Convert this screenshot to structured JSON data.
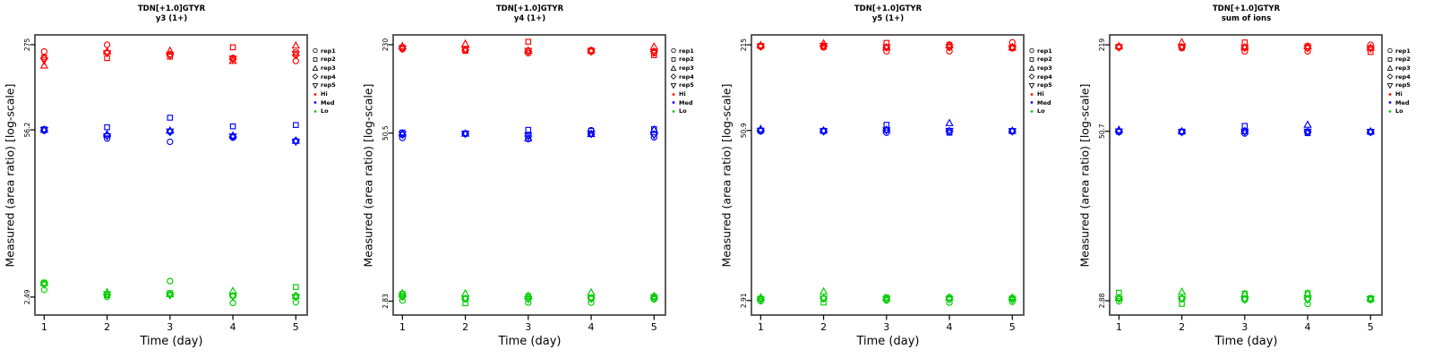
{
  "colors": {
    "hi": "#FF0000",
    "med": "#0000FF",
    "lo": "#00CD00",
    "frame": "#4D4D4D",
    "axis": "#000000"
  },
  "legend": {
    "reps": [
      {
        "label": "rep1",
        "marker": "circle"
      },
      {
        "label": "rep2",
        "marker": "square"
      },
      {
        "label": "rep3",
        "marker": "triangle-up"
      },
      {
        "label": "rep4",
        "marker": "diamond"
      },
      {
        "label": "rep5",
        "marker": "triangle-down"
      }
    ],
    "levels": [
      {
        "label": "Hi",
        "color": "#FF0000"
      },
      {
        "label": "Med",
        "color": "#0000FF"
      },
      {
        "label": "Lo",
        "color": "#00CD00"
      }
    ]
  },
  "chart_data": [
    {
      "type": "scatter",
      "title": "TDN[+1.0]GTYR",
      "subtitle": "y3 (1+)",
      "xlabel": "Time (day)",
      "ylabel": "Measured (area ratio) [log-scale]",
      "x": [
        1,
        2,
        3,
        4,
        5
      ],
      "xticks": [
        "1",
        "2",
        "3",
        "4",
        "5"
      ],
      "xlim": [
        0.853,
        5.181
      ],
      "yscale": "log",
      "ylim": [
        1.78,
        330
      ],
      "ytick_values": [
        2.49,
        56.2,
        275
      ],
      "ytick_labels": [
        "2.49",
        "56.2",
        "275"
      ],
      "grid": false,
      "legend_position": "right",
      "levels": [
        {
          "name": "Hi",
          "color": "#FF0000",
          "reps": [
            {
              "name": "rep1",
              "marker": "circle",
              "values": [
                242,
                275,
                230,
                215,
                203
              ]
            },
            {
              "name": "rep2",
              "marker": "square",
              "values": [
                217,
                214,
                220,
                262,
                238
              ]
            },
            {
              "name": "rep3",
              "marker": "triangle-up",
              "values": [
                186,
                242,
                245,
                203,
                270
              ]
            },
            {
              "name": "rep4",
              "marker": "diamond",
              "values": [
                212,
                238,
                228,
                210,
                226
              ]
            },
            {
              "name": "rep5",
              "marker": "triangle-down",
              "values": [
                205,
                235,
                225,
                212,
                231
              ]
            }
          ]
        },
        {
          "name": "Med",
          "color": "#0000FF",
          "reps": [
            {
              "name": "rep1",
              "marker": "circle",
              "values": [
                55.5,
                47.8,
                45.0,
                48.6,
                45.5
              ]
            },
            {
              "name": "rep2",
              "marker": "square",
              "values": [
                56.8,
                59.0,
                70.5,
                60.0,
                61.5
              ]
            },
            {
              "name": "rep3",
              "marker": "triangle-up",
              "values": [
                56.2,
                51.7,
                55.3,
                50.4,
                45.8
              ]
            },
            {
              "name": "rep4",
              "marker": "diamond",
              "values": [
                55.8,
                50.5,
                54.0,
                49.5,
                46.0
              ]
            },
            {
              "name": "rep5",
              "marker": "triangle-down",
              "values": [
                56.0,
                50.0,
                54.5,
                49.8,
                45.2
              ]
            }
          ]
        },
        {
          "name": "Lo",
          "color": "#00CD00",
          "reps": [
            {
              "name": "rep1",
              "marker": "circle",
              "values": [
                2.85,
                2.5,
                3.35,
                2.23,
                2.26
              ]
            },
            {
              "name": "rep2",
              "marker": "square",
              "values": [
                3.25,
                2.58,
                2.68,
                2.56,
                3.0
              ]
            },
            {
              "name": "rep3",
              "marker": "triangle-up",
              "values": [
                3.22,
                2.72,
                2.62,
                2.78,
                2.53
              ]
            },
            {
              "name": "rep4",
              "marker": "diamond",
              "values": [
                3.18,
                2.6,
                2.6,
                2.54,
                2.55
              ]
            },
            {
              "name": "rep5",
              "marker": "triangle-down",
              "values": [
                3.15,
                2.62,
                2.58,
                2.52,
                2.5
              ]
            }
          ]
        }
      ]
    },
    {
      "type": "scatter",
      "title": "TDN[+1.0]GTYR",
      "subtitle": "y4 (1+)",
      "xlabel": "Time (day)",
      "ylabel": "Measured (area ratio) [log-scale]",
      "x": [
        1,
        2,
        3,
        4,
        5
      ],
      "xticks": [
        "1",
        "2",
        "3",
        "4",
        "5"
      ],
      "xlim": [
        0.853,
        5.181
      ],
      "yscale": "log",
      "ylim": [
        2.23,
        272
      ],
      "ytick_values": [
        2.83,
        50.5,
        230
      ],
      "ytick_labels": [
        "2.83",
        "50.5",
        "230"
      ],
      "grid": false,
      "legend_position": "right",
      "levels": [
        {
          "name": "Hi",
          "color": "#FF0000",
          "reps": [
            {
              "name": "rep1",
              "marker": "circle",
              "values": [
                213,
                208,
                199,
                204,
                199
              ]
            },
            {
              "name": "rep2",
              "marker": "square",
              "values": [
                219,
                207,
                242,
                209,
                192
              ]
            },
            {
              "name": "rep3",
              "marker": "triangle-up",
              "values": [
                224,
                233,
                208,
                208,
                222
              ]
            },
            {
              "name": "rep4",
              "marker": "diamond",
              "values": [
                216,
                210,
                205,
                206,
                205
              ]
            },
            {
              "name": "rep5",
              "marker": "triangle-down",
              "values": [
                215,
                212,
                207,
                205,
                203
              ]
            }
          ]
        },
        {
          "name": "Med",
          "color": "#0000FF",
          "reps": [
            {
              "name": "rep1",
              "marker": "circle",
              "values": [
                46.5,
                49.8,
                45.6,
                53.0,
                47.0
              ]
            },
            {
              "name": "rep2",
              "marker": "square",
              "values": [
                51.0,
                50.2,
                53.4,
                52.5,
                54.0
              ]
            },
            {
              "name": "rep3",
              "marker": "triangle-up",
              "values": [
                50.0,
                50.0,
                46.2,
                49.6,
                53.5
              ]
            },
            {
              "name": "rep4",
              "marker": "diamond",
              "values": [
                49.0,
                49.9,
                48.0,
                49.8,
                49.5
              ]
            },
            {
              "name": "rep5",
              "marker": "triangle-down",
              "values": [
                49.5,
                50.1,
                48.5,
                50.0,
                49.0
              ]
            }
          ]
        },
        {
          "name": "Lo",
          "color": "#00CD00",
          "reps": [
            {
              "name": "rep1",
              "marker": "circle",
              "values": [
                2.86,
                2.93,
                2.76,
                2.76,
                2.92
              ]
            },
            {
              "name": "rep2",
              "marker": "square",
              "values": [
                3.2,
                2.73,
                3.08,
                2.96,
                3.05
              ]
            },
            {
              "name": "rep3",
              "marker": "triangle-up",
              "values": [
                3.24,
                3.22,
                3.1,
                3.28,
                3.08
              ]
            },
            {
              "name": "rep4",
              "marker": "diamond",
              "values": [
                3.05,
                2.95,
                2.95,
                2.97,
                2.98
              ]
            },
            {
              "name": "rep5",
              "marker": "triangle-down",
              "values": [
                3.08,
                2.96,
                2.93,
                2.95,
                2.96
              ]
            }
          ]
        }
      ]
    },
    {
      "type": "scatter",
      "title": "TDN[+1.0]GTYR",
      "subtitle": "y5 (1+)",
      "xlabel": "Time (day)",
      "ylabel": "Measured (area ratio) [log-scale]",
      "x": [
        1,
        2,
        3,
        4,
        5
      ],
      "xticks": [
        "1",
        "2",
        "3",
        "4",
        "5"
      ],
      "xlim": [
        0.853,
        5.181
      ],
      "yscale": "log",
      "ylim": [
        2.28,
        254
      ],
      "ytick_values": [
        2.91,
        50.9,
        215
      ],
      "ytick_labels": [
        "2.91",
        "50.9",
        "215"
      ],
      "grid": false,
      "legend_position": "right",
      "levels": [
        {
          "name": "Hi",
          "color": "#FF0000",
          "reps": [
            {
              "name": "rep1",
              "marker": "circle",
              "values": [
                208,
                206,
                193,
                193,
                224
              ]
            },
            {
              "name": "rep2",
              "marker": "square",
              "values": [
                211,
                208,
                222,
                215,
                203
              ]
            },
            {
              "name": "rep3",
              "marker": "triangle-up",
              "values": [
                213,
                220,
                206,
                214,
                206
              ]
            },
            {
              "name": "rep4",
              "marker": "diamond",
              "values": [
                210,
                210,
                205,
                206,
                207
              ]
            },
            {
              "name": "rep5",
              "marker": "triangle-down",
              "values": [
                209,
                211,
                207,
                207,
                205
              ]
            }
          ]
        },
        {
          "name": "Med",
          "color": "#0000FF",
          "reps": [
            {
              "name": "rep1",
              "marker": "circle",
              "values": [
                50.2,
                50.0,
                49.0,
                49.2,
                50.0
              ]
            },
            {
              "name": "rep2",
              "marker": "square",
              "values": [
                50.6,
                50.6,
                56.0,
                49.0,
                50.4
              ]
            },
            {
              "name": "rep3",
              "marker": "triangle-up",
              "values": [
                52.0,
                50.8,
                51.4,
                57.5,
                50.6
              ]
            },
            {
              "name": "rep4",
              "marker": "diamond",
              "values": [
                50.8,
                50.4,
                51.2,
                50.5,
                50.2
              ]
            },
            {
              "name": "rep5",
              "marker": "triangle-down",
              "values": [
                50.7,
                50.3,
                51.0,
                50.6,
                50.3
              ]
            }
          ]
        },
        {
          "name": "Lo",
          "color": "#00CD00",
          "reps": [
            {
              "name": "rep1",
              "marker": "circle",
              "values": [
                2.88,
                3.0,
                2.91,
                2.81,
                2.85
              ]
            },
            {
              "name": "rep2",
              "marker": "square",
              "values": [
                3.0,
                2.81,
                3.06,
                3.05,
                3.02
              ]
            },
            {
              "name": "rep3",
              "marker": "triangle-up",
              "values": [
                3.06,
                3.38,
                3.04,
                3.06,
                3.05
              ]
            },
            {
              "name": "rep4",
              "marker": "diamond",
              "values": [
                2.97,
                3.02,
                2.98,
                2.98,
                2.96
              ]
            },
            {
              "name": "rep5",
              "marker": "triangle-down",
              "values": [
                2.96,
                3.01,
                2.97,
                2.97,
                2.95
              ]
            }
          ]
        }
      ]
    },
    {
      "type": "scatter",
      "title": "TDN[+1.0]GTYR",
      "subtitle": "sum of ions",
      "xlabel": "Time (day)",
      "ylabel": "Measured (area ratio) [log-scale]",
      "x": [
        1,
        2,
        3,
        4,
        5
      ],
      "xticks": [
        "1",
        "2",
        "3",
        "4",
        "5"
      ],
      "xlim": [
        0.853,
        5.181
      ],
      "yscale": "log",
      "ylim": [
        2.26,
        259
      ],
      "ytick_values": [
        2.88,
        50.7,
        219
      ],
      "ytick_labels": [
        "2.88",
        "50.7",
        "219"
      ],
      "grid": false,
      "legend_position": "right",
      "levels": [
        {
          "name": "Hi",
          "color": "#FF0000",
          "reps": [
            {
              "name": "rep1",
              "marker": "circle",
              "values": [
                210,
                207,
                196,
                196,
                219
              ]
            },
            {
              "name": "rep2",
              "marker": "square",
              "values": [
                212,
                209,
                228,
                214,
                194
              ]
            },
            {
              "name": "rep3",
              "marker": "triangle-up",
              "values": [
                214,
                228,
                210,
                213,
                208
              ]
            },
            {
              "name": "rep4",
              "marker": "diamond",
              "values": [
                211,
                211,
                208,
                207,
                207
              ]
            },
            {
              "name": "rep5",
              "marker": "triangle-down",
              "values": [
                210,
                212,
                209,
                208,
                206
              ]
            }
          ]
        },
        {
          "name": "Med",
          "color": "#0000FF",
          "reps": [
            {
              "name": "rep1",
              "marker": "circle",
              "values": [
                50.0,
                49.9,
                48.8,
                49.3,
                49.8
              ]
            },
            {
              "name": "rep2",
              "marker": "square",
              "values": [
                50.5,
                50.4,
                55.5,
                49.1,
                50.3
              ]
            },
            {
              "name": "rep3",
              "marker": "triangle-up",
              "values": [
                51.8,
                50.6,
                50.8,
                56.5,
                50.5
              ]
            },
            {
              "name": "rep4",
              "marker": "diamond",
              "values": [
                50.6,
                50.2,
                50.5,
                50.3,
                50.1
              ]
            },
            {
              "name": "rep5",
              "marker": "triangle-down",
              "values": [
                50.5,
                50.1,
                50.3,
                50.4,
                50.2
              ]
            }
          ]
        },
        {
          "name": "Lo",
          "color": "#00CD00",
          "reps": [
            {
              "name": "rep1",
              "marker": "circle",
              "values": [
                2.85,
                2.97,
                2.92,
                2.73,
                2.92
              ]
            },
            {
              "name": "rep2",
              "marker": "square",
              "values": [
                3.3,
                2.73,
                3.25,
                3.27,
                3.0
              ]
            },
            {
              "name": "rep3",
              "marker": "triangle-up",
              "values": [
                3.02,
                3.34,
                3.22,
                3.25,
                2.97
              ]
            },
            {
              "name": "rep4",
              "marker": "diamond",
              "values": [
                2.98,
                2.99,
                2.97,
                2.96,
                2.95
              ]
            },
            {
              "name": "rep5",
              "marker": "triangle-down",
              "values": [
                2.97,
                2.98,
                2.95,
                2.94,
                2.96
              ]
            }
          ]
        }
      ]
    }
  ]
}
